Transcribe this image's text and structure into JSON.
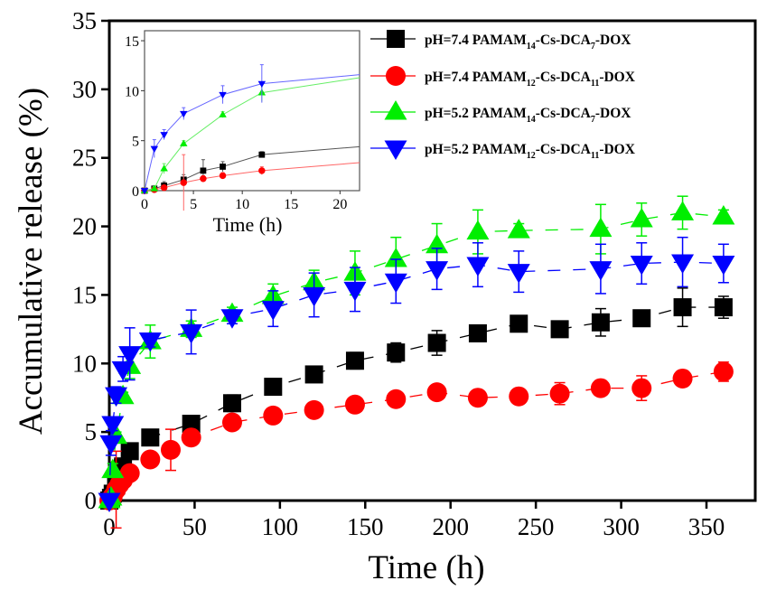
{
  "chart_data": {
    "type": "scatter",
    "title": "",
    "xlabel": "Time (h)",
    "ylabel": "Accumulative release (%)",
    "xlim": [
      -2,
      378
    ],
    "ylim": [
      0,
      35
    ],
    "xticks": [
      0,
      50,
      100,
      150,
      200,
      250,
      300,
      350
    ],
    "yticks": [
      0,
      5,
      10,
      15,
      20,
      25,
      30,
      35
    ],
    "grid": false,
    "legend_position": "top-right",
    "x": [
      0,
      1,
      2,
      4,
      6,
      8,
      12,
      24,
      48,
      72,
      96,
      120,
      144,
      168,
      192,
      216,
      240,
      264,
      288,
      312,
      336,
      360
    ],
    "series": [
      {
        "name": "pH=7.4 PAMAM14-Cs-DCA7-DOX",
        "label_parts": [
          [
            "pH=7.4 PAMAM",
            ""
          ],
          [
            "14",
            "sub"
          ],
          [
            "-Cs-DCA",
            ""
          ],
          [
            "7",
            "sub"
          ],
          [
            "-DOX",
            ""
          ]
        ],
        "color": "#000000",
        "marker": "square",
        "values": [
          0,
          0.2,
          0.5,
          1.1,
          2.0,
          2.4,
          3.6,
          4.6,
          5.6,
          7.1,
          8.3,
          9.2,
          10.2,
          10.8,
          11.5,
          12.2,
          12.9,
          12.5,
          13.0,
          13.3,
          14.1,
          14.1
        ],
        "errors": [
          0,
          0.2,
          0.4,
          0.5,
          1.1,
          0.5,
          0.3,
          0.3,
          0.3,
          0.6,
          0.3,
          0.3,
          0.6,
          0.7,
          0.9,
          0.3,
          0.3,
          0.3,
          1.0,
          0.3,
          1.4,
          0.8
        ]
      },
      {
        "name": "pH=7.4 PAMAM12-Cs-DCA11-DOX",
        "label_parts": [
          [
            "pH=7.4 PAMAM",
            ""
          ],
          [
            "12",
            "sub"
          ],
          [
            "-Cs-DCA",
            ""
          ],
          [
            "11",
            "sub"
          ],
          [
            "-DOX",
            ""
          ]
        ],
        "color": "#ff0000",
        "marker": "circle",
        "values": [
          0,
          0.1,
          0.3,
          0.8,
          1.2,
          1.5,
          2.0,
          3.0,
          3.7,
          4.6,
          5.7,
          6.2,
          6.6,
          7.0,
          7.4,
          7.9,
          7.5,
          7.6,
          7.8,
          8.2,
          8.2,
          8.9,
          9.4
        ],
        "x_override": [
          0,
          1,
          2,
          4,
          6,
          8,
          12,
          24,
          36,
          48,
          72,
          96,
          120,
          144,
          168,
          192,
          216,
          240,
          264,
          288,
          312,
          336,
          360
        ],
        "errors": [
          0,
          0.1,
          0.2,
          2.8,
          0.3,
          0.3,
          0.4,
          0.3,
          1.5,
          0.3,
          0.3,
          0.3,
          0.3,
          0.3,
          0.3,
          0.3,
          0.3,
          0.3,
          0.8,
          0.3,
          0.9,
          0.3,
          0.7
        ]
      },
      {
        "name": "pH=5.2 PAMAM14-Cs-DCA7-DOX",
        "label_parts": [
          [
            "pH=5.2 PAMAM",
            ""
          ],
          [
            "14",
            "sub"
          ],
          [
            "-Cs-DCA",
            ""
          ],
          [
            "7",
            "sub"
          ],
          [
            "-DOX",
            ""
          ]
        ],
        "color": "#00ee00",
        "marker": "triangle-up",
        "values": [
          0,
          0.2,
          2.2,
          4.7,
          7.6,
          9.8,
          11.6,
          12.5,
          13.6,
          14.9,
          15.9,
          16.6,
          17.6,
          18.6,
          19.6,
          19.7,
          19.8,
          20.5,
          21.0,
          20.7
        ],
        "x_override": [
          0,
          1,
          2,
          4,
          8,
          12,
          24,
          48,
          72,
          96,
          120,
          144,
          168,
          192,
          216,
          240,
          288,
          312,
          336,
          360
        ],
        "errors": [
          0,
          0.2,
          0.5,
          0.3,
          0.3,
          0.9,
          1.2,
          0.6,
          0.5,
          0.9,
          0.9,
          1.6,
          1.6,
          1.6,
          1.6,
          0.5,
          1.8,
          1.2,
          1.2,
          0.5
        ]
      },
      {
        "name": "pH=5.2 PAMAM12-Cs-DCA11-DOX",
        "label_parts": [
          [
            "pH=5.2 PAMAM",
            ""
          ],
          [
            "12",
            "sub"
          ],
          [
            "-Cs-DCA",
            ""
          ],
          [
            "11",
            "sub"
          ],
          [
            "-DOX",
            ""
          ]
        ],
        "color": "#0000ff",
        "marker": "triangle-down",
        "values": [
          0,
          4.2,
          5.6,
          7.7,
          9.6,
          10.7,
          11.7,
          12.3,
          13.4,
          14.0,
          15.0,
          15.4,
          16.0,
          16.9,
          17.2,
          16.7,
          16.9,
          17.3,
          17.4,
          17.3
        ],
        "x_override": [
          0,
          1,
          2,
          4,
          8,
          12,
          24,
          48,
          72,
          96,
          120,
          144,
          168,
          192,
          216,
          240,
          288,
          312,
          336,
          360
        ],
        "errors": [
          0,
          0.9,
          0.5,
          0.6,
          0.9,
          1.9,
          0.5,
          1.6,
          0.5,
          1.3,
          1.6,
          1.6,
          1.6,
          1.5,
          1.6,
          1.5,
          1.8,
          1.5,
          1.8,
          1.4
        ]
      }
    ],
    "inset": {
      "xlabel": "Time (h)",
      "xlim": [
        0,
        22
      ],
      "ylim": [
        0,
        16
      ],
      "xticks": [
        0,
        5,
        10,
        15,
        20
      ],
      "yticks": [
        0,
        5,
        10,
        15
      ],
      "series_end": [
        4.4,
        2.8,
        11.3,
        11.6
      ]
    }
  }
}
